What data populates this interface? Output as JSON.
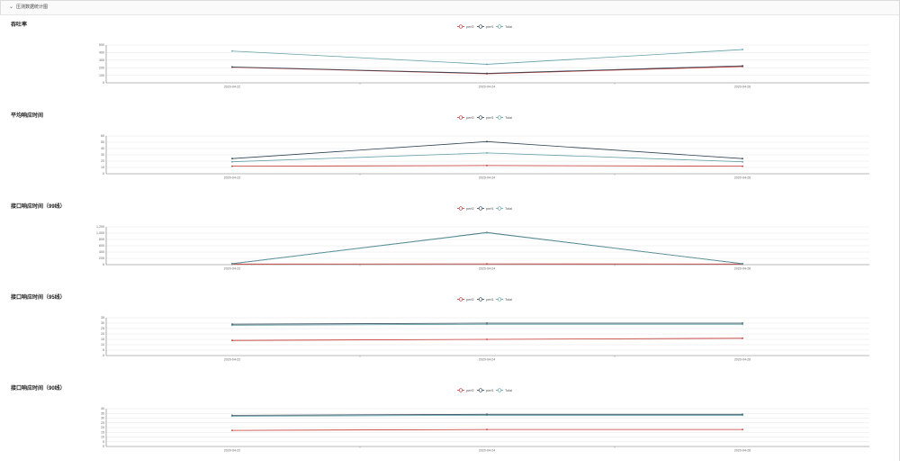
{
  "panel": {
    "title": "压测数据统计图",
    "toggle_icon": "chevron-down-icon"
  },
  "legend": [
    {
      "name": "perf2",
      "color": "#c23531"
    },
    {
      "name": "perf1",
      "color": "#2f4554"
    },
    {
      "name": "Total",
      "color": "#61a0a8"
    }
  ],
  "chart_data": [
    {
      "type": "line",
      "title": "吞吐率",
      "categories": [
        "2020-04-22",
        "2020-04-24",
        "2020-04-26"
      ],
      "ylim": [
        0,
        500
      ],
      "yticks": [
        "0",
        "100",
        "200",
        "300",
        "400",
        "500"
      ],
      "series": [
        {
          "name": "perf2",
          "values": [
            205,
            120,
            215
          ]
        },
        {
          "name": "perf1",
          "values": [
            210,
            125,
            225
          ]
        },
        {
          "name": "Total",
          "values": [
            420,
            245,
            440
          ]
        }
      ]
    },
    {
      "type": "line",
      "title": "平均响应时间",
      "categories": [
        "2020-04-22",
        "2020-04-24",
        "2020-04-26"
      ],
      "ylim": [
        0,
        60
      ],
      "yticks": [
        "0",
        "10",
        "20",
        "30",
        "40",
        "50",
        "60"
      ],
      "series": [
        {
          "name": "perf2",
          "values": [
            12,
            13,
            12
          ]
        },
        {
          "name": "perf1",
          "values": [
            24,
            51,
            24
          ]
        },
        {
          "name": "Total",
          "values": [
            19,
            33,
            19
          ]
        }
      ]
    },
    {
      "type": "line",
      "title": "接口响应时间（99线）",
      "categories": [
        "2020-04-22",
        "2020-04-24",
        "2020-04-26"
      ],
      "ylim": [
        0,
        1200
      ],
      "yticks": [
        "0",
        "200",
        "400",
        "600",
        "800",
        "1,000",
        "1,200"
      ],
      "series": [
        {
          "name": "perf2",
          "values": [
            20,
            25,
            20
          ]
        },
        {
          "name": "perf1",
          "values": [
            30,
            1020,
            30
          ]
        },
        {
          "name": "Total",
          "values": [
            28,
            1010,
            28
          ]
        }
      ]
    },
    {
      "type": "line",
      "title": "接口响应时间（95线）",
      "categories": [
        "2020-04-22",
        "2020-04-24",
        "2020-04-26"
      ],
      "ylim": [
        0,
        35
      ],
      "yticks": [
        "0",
        "5",
        "10",
        "15",
        "20",
        "25",
        "30",
        "35"
      ],
      "series": [
        {
          "name": "perf2",
          "values": [
            14,
            15,
            16
          ]
        },
        {
          "name": "perf1",
          "values": [
            29,
            30,
            30
          ]
        },
        {
          "name": "Total",
          "values": [
            28,
            29,
            29
          ]
        }
      ]
    },
    {
      "type": "line",
      "title": "接口响应时间（90线）",
      "categories": [
        "2020-04-22",
        "2020-04-24",
        "2020-04-26"
      ],
      "ylim": [
        0,
        40
      ],
      "yticks": [
        "0",
        "5",
        "10",
        "15",
        "20",
        "25",
        "30",
        "35",
        "40"
      ],
      "series": [
        {
          "name": "perf2",
          "values": [
            17,
            18,
            18
          ]
        },
        {
          "name": "perf1",
          "values": [
            33,
            34,
            34
          ]
        },
        {
          "name": "Total",
          "values": [
            32,
            33,
            33
          ]
        }
      ]
    }
  ]
}
